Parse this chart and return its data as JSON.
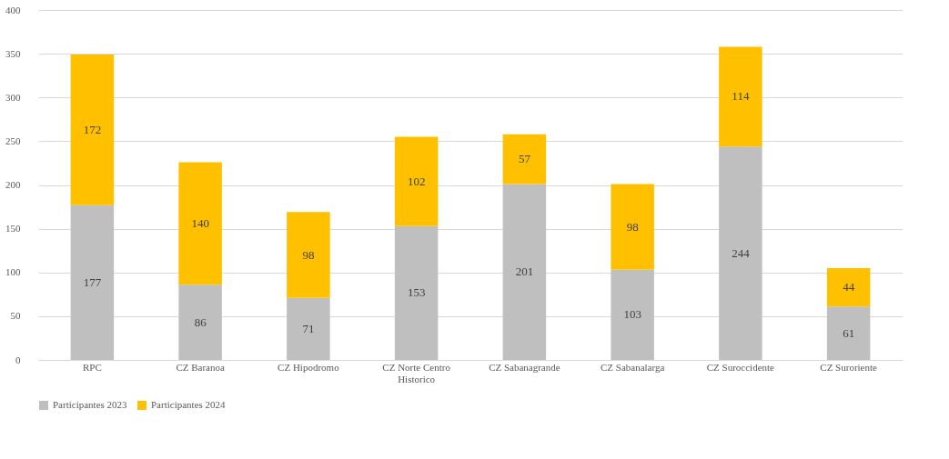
{
  "chart_data": {
    "type": "bar",
    "stacked": true,
    "categories": [
      "RPC",
      "CZ Baranoa",
      "CZ Hipodromo",
      "CZ Norte Centro Historico",
      "CZ Sabanagrande",
      "CZ Sabanalarga",
      "CZ Suroccidente",
      "CZ Suroriente"
    ],
    "series": [
      {
        "name": "Participantes 2023",
        "color": "#bfbfbf",
        "values": [
          177,
          86,
          71,
          153,
          201,
          103,
          244,
          61
        ]
      },
      {
        "name": "Participantes 2024",
        "color": "#ffc000",
        "values": [
          172,
          140,
          98,
          102,
          57,
          98,
          114,
          44
        ]
      }
    ],
    "ylim": [
      0,
      400
    ],
    "yticks": [
      0,
      50,
      100,
      150,
      200,
      250,
      300,
      350,
      400
    ],
    "grid": "y",
    "legend": "bottom",
    "data_labels": true
  }
}
